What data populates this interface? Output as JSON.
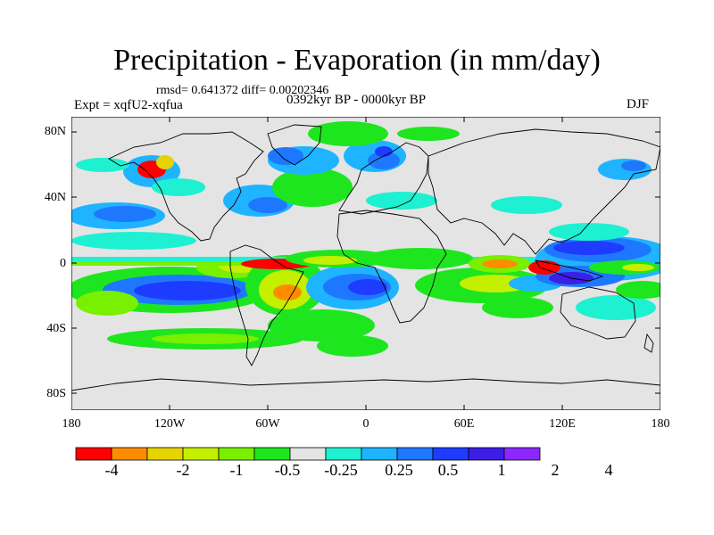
{
  "title": "Precipitation - Evaporation (in mm/day)",
  "stats": "rmsd= 0.641372 diff= 0.00202346",
  "experiment": "Expt = xqfU2-xqfua",
  "period": "0392kyr BP - 0000kyr BP",
  "season": "DJF",
  "y_ticks": [
    "80N",
    "40N",
    "0",
    "40S",
    "80S"
  ],
  "x_ticks": [
    "180",
    "120W",
    "60W",
    "0",
    "60E",
    "120E",
    "180"
  ],
  "colorbar": {
    "colors": [
      "#ff0000",
      "#ff8c00",
      "#e6d400",
      "#c4f000",
      "#78f000",
      "#1ee61e",
      "#e4e4e4",
      "#1ef0d2",
      "#1eb4ff",
      "#1e78ff",
      "#1e3cff",
      "#3c1ee6",
      "#8c28ff"
    ],
    "labels": [
      "-4",
      "-2",
      "-1",
      "-0.5",
      "-0.25",
      "0.25",
      "0.5",
      "1",
      "2",
      "4"
    ]
  }
}
